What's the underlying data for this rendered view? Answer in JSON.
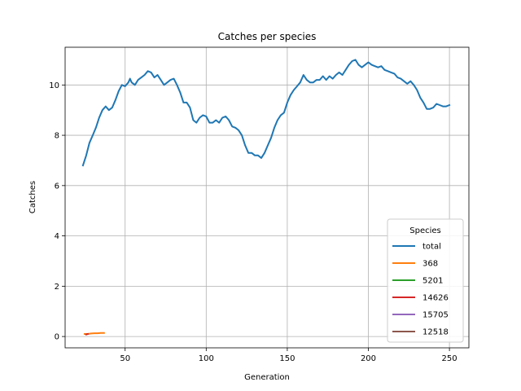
{
  "chart_data": {
    "type": "line",
    "title": "Catches per species",
    "xlabel": "Generation",
    "ylabel": "Catches",
    "xlim": [
      13,
      262
    ],
    "ylim": [
      -0.45,
      11.5
    ],
    "xticks": [
      50,
      100,
      150,
      200,
      250
    ],
    "yticks": [
      0,
      2,
      4,
      6,
      8,
      10
    ],
    "grid": true,
    "legend": {
      "title": "Species",
      "placement": "lower right"
    },
    "series": [
      {
        "name": "total",
        "color": "#1f77b4",
        "x": [
          24,
          26,
          28,
          30,
          32,
          34,
          36,
          38,
          40,
          42,
          44,
          46,
          48,
          50,
          52,
          53,
          54,
          56,
          58,
          60,
          62,
          64,
          66,
          68,
          70,
          72,
          74,
          76,
          78,
          80,
          82,
          84,
          86,
          88,
          90,
          92,
          94,
          96,
          98,
          100,
          102,
          104,
          106,
          108,
          110,
          112,
          114,
          116,
          118,
          120,
          122,
          124,
          126,
          128,
          130,
          132,
          134,
          136,
          138,
          140,
          142,
          144,
          146,
          148,
          150,
          152,
          154,
          156,
          158,
          160,
          162,
          164,
          166,
          168,
          170,
          172,
          174,
          176,
          178,
          180,
          182,
          184,
          186,
          188,
          190,
          192,
          194,
          196,
          198,
          200,
          202,
          204,
          206,
          208,
          210,
          212,
          214,
          216,
          218,
          220,
          222,
          224,
          226,
          228,
          230,
          232,
          234,
          236,
          238,
          240,
          242,
          244,
          246,
          248,
          250
        ],
        "values": [
          6.8,
          7.2,
          7.7,
          8.0,
          8.3,
          8.7,
          9.0,
          9.15,
          9.0,
          9.1,
          9.4,
          9.75,
          10.0,
          9.95,
          10.1,
          10.25,
          10.1,
          10.0,
          10.2,
          10.3,
          10.4,
          10.55,
          10.5,
          10.3,
          10.4,
          10.2,
          10.0,
          10.1,
          10.2,
          10.25,
          10.0,
          9.7,
          9.3,
          9.3,
          9.1,
          8.6,
          8.5,
          8.7,
          8.8,
          8.75,
          8.5,
          8.5,
          8.6,
          8.5,
          8.7,
          8.75,
          8.6,
          8.35,
          8.3,
          8.2,
          8.0,
          7.6,
          7.3,
          7.3,
          7.2,
          7.2,
          7.1,
          7.3,
          7.6,
          7.9,
          8.3,
          8.6,
          8.8,
          8.9,
          9.3,
          9.6,
          9.8,
          9.95,
          10.1,
          10.4,
          10.2,
          10.1,
          10.1,
          10.2,
          10.2,
          10.35,
          10.2,
          10.35,
          10.25,
          10.4,
          10.5,
          10.4,
          10.6,
          10.8,
          10.95,
          11.0,
          10.8,
          10.7,
          10.8,
          10.9,
          10.8,
          10.75,
          10.7,
          10.75,
          10.6,
          10.55,
          10.5,
          10.45,
          10.3,
          10.25,
          10.15,
          10.05,
          10.15,
          10.0,
          9.8,
          9.5,
          9.3,
          9.05,
          9.05,
          9.1,
          9.25,
          9.2,
          9.15,
          9.15,
          9.2
        ]
      },
      {
        "name": "368",
        "color": "#ff7f0e",
        "x": [
          25,
          27,
          29,
          31,
          33,
          35,
          37
        ],
        "values": [
          0.1,
          0.1,
          0.12,
          0.13,
          0.13,
          0.14,
          0.14
        ]
      },
      {
        "name": "5201",
        "color": "#2ca02c",
        "x": [],
        "values": []
      },
      {
        "name": "14626",
        "color": "#d62728",
        "x": [
          26,
          27
        ],
        "values": [
          0.08,
          0.1
        ]
      },
      {
        "name": "15705",
        "color": "#9467bd",
        "x": [],
        "values": []
      },
      {
        "name": "12518",
        "color": "#8c564b",
        "x": [],
        "values": []
      }
    ]
  }
}
